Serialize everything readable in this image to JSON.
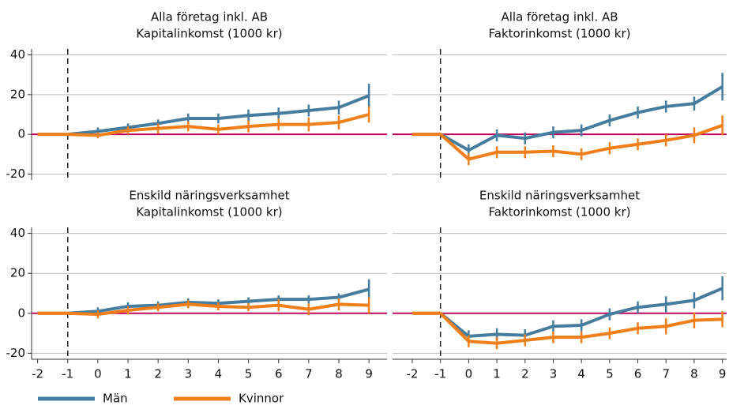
{
  "chart_data": [
    {
      "type": "line",
      "title": "Alla företag inkl. AB",
      "subtitle": "Kapitalinkomst (1000 kr)",
      "x": [
        -2,
        -1,
        0,
        1,
        2,
        3,
        4,
        5,
        6,
        7,
        8,
        9
      ],
      "xlim": [
        -2.2,
        9.6
      ],
      "ylim": [
        -23,
        43
      ],
      "yticks": [
        -20,
        0,
        20,
        40
      ],
      "show_ytick_labels": true,
      "reference_y": 0,
      "reference_color": "#c0005a",
      "vline_x": -1,
      "series": [
        {
          "name": "Män",
          "color": "#467c9e",
          "values": [
            0,
            0,
            1.5,
            3.5,
            5.5,
            8,
            8,
            9.5,
            10.5,
            12,
            13.5,
            19.5
          ],
          "errors": [
            null,
            null,
            2,
            2,
            2,
            2.5,
            2.5,
            3,
            3,
            3,
            3.5,
            6
          ]
        },
        {
          "name": "Kvinnor",
          "color": "#f07f1a",
          "values": [
            0,
            0,
            -0.5,
            2,
            3,
            4,
            2.5,
            4,
            5,
            5,
            6,
            10
          ],
          "errors": [
            null,
            null,
            1.5,
            2,
            2.5,
            2.5,
            2.5,
            3,
            3,
            3.5,
            3.5,
            4
          ]
        }
      ]
    },
    {
      "type": "line",
      "title": "Alla företag inkl. AB",
      "subtitle": "Faktorinkomst (1000 kr)",
      "x": [
        -2,
        -1,
        0,
        1,
        2,
        3,
        4,
        5,
        6,
        7,
        8,
        9
      ],
      "xlim": [
        -2.7,
        9.15
      ],
      "ylim": [
        -23,
        43
      ],
      "yticks": [
        -20,
        0,
        20,
        40
      ],
      "show_ytick_labels": false,
      "reference_y": 0,
      "reference_color": "#c0005a",
      "vline_x": -1,
      "series": [
        {
          "name": "Män",
          "color": "#467c9e",
          "values": [
            0,
            0,
            -8,
            -0.5,
            -2,
            1,
            2,
            7,
            11,
            14,
            15.5,
            24
          ],
          "errors": [
            null,
            null,
            3,
            3,
            3,
            3,
            3,
            3,
            3,
            3,
            3.5,
            7
          ]
        },
        {
          "name": "Kvinnor",
          "color": "#f07f1a",
          "values": [
            0,
            0,
            -12.5,
            -9,
            -9,
            -8.5,
            -10,
            -7,
            -5,
            -3,
            -0.5,
            4.5
          ],
          "errors": [
            null,
            null,
            3,
            3,
            3,
            3,
            3,
            3,
            3,
            3,
            4,
            5
          ]
        }
      ]
    },
    {
      "type": "line",
      "title": "Enskild näringsverksamhet",
      "subtitle": "Kapitalinkomst (1000 kr)",
      "x": [
        -2,
        -1,
        0,
        1,
        2,
        3,
        4,
        5,
        6,
        7,
        8,
        9
      ],
      "xlim": [
        -2.2,
        9.6
      ],
      "ylim": [
        -23,
        43
      ],
      "yticks": [
        -20,
        0,
        20,
        40
      ],
      "xticks": [
        -2,
        -1,
        0,
        1,
        2,
        3,
        4,
        5,
        6,
        7,
        8,
        9
      ],
      "show_ytick_labels": true,
      "reference_y": 0,
      "reference_color": "#c0005a",
      "vline_x": -1,
      "series": [
        {
          "name": "Män",
          "color": "#467c9e",
          "values": [
            0,
            0,
            1,
            3.5,
            4,
            5.5,
            5,
            6,
            7,
            7,
            8,
            12
          ],
          "errors": [
            null,
            null,
            2,
            2,
            2,
            2,
            2,
            2,
            2,
            2,
            2,
            5
          ]
        },
        {
          "name": "Kvinnor",
          "color": "#f07f1a",
          "values": [
            0,
            0,
            -0.5,
            1.5,
            3,
            4.5,
            3.5,
            3,
            4,
            2,
            4.5,
            4
          ],
          "errors": [
            null,
            null,
            2,
            2,
            2,
            2,
            2,
            2,
            3,
            3,
            3,
            4
          ]
        }
      ]
    },
    {
      "type": "line",
      "title": "Enskild näringsverksamhet",
      "subtitle": "Faktorinkomst (1000 kr)",
      "x": [
        -2,
        -1,
        0,
        1,
        2,
        3,
        4,
        5,
        6,
        7,
        8,
        9
      ],
      "xlim": [
        -2.7,
        9.15
      ],
      "ylim": [
        -23,
        43
      ],
      "yticks": [
        -20,
        0,
        20,
        40
      ],
      "xticks": [
        -2,
        -1,
        0,
        1,
        2,
        3,
        4,
        5,
        6,
        7,
        8,
        9
      ],
      "show_ytick_labels": false,
      "reference_y": 0,
      "reference_color": "#c0005a",
      "vline_x": -1,
      "series": [
        {
          "name": "Män",
          "color": "#467c9e",
          "values": [
            0,
            0,
            -11.5,
            -10.5,
            -11,
            -6.5,
            -6,
            -0.5,
            3,
            4.5,
            6.5,
            12.5
          ],
          "errors": [
            null,
            null,
            3,
            3,
            3,
            3,
            3,
            3,
            3,
            4,
            4,
            6
          ]
        },
        {
          "name": "Kvinnor",
          "color": "#f07f1a",
          "values": [
            0,
            0,
            -14,
            -15,
            -13.5,
            -12,
            -12,
            -10,
            -7.5,
            -6.5,
            -3.5,
            -3
          ],
          "errors": [
            null,
            null,
            3,
            3,
            3,
            3,
            3,
            3,
            3,
            4,
            4,
            4
          ]
        }
      ]
    }
  ]
}
